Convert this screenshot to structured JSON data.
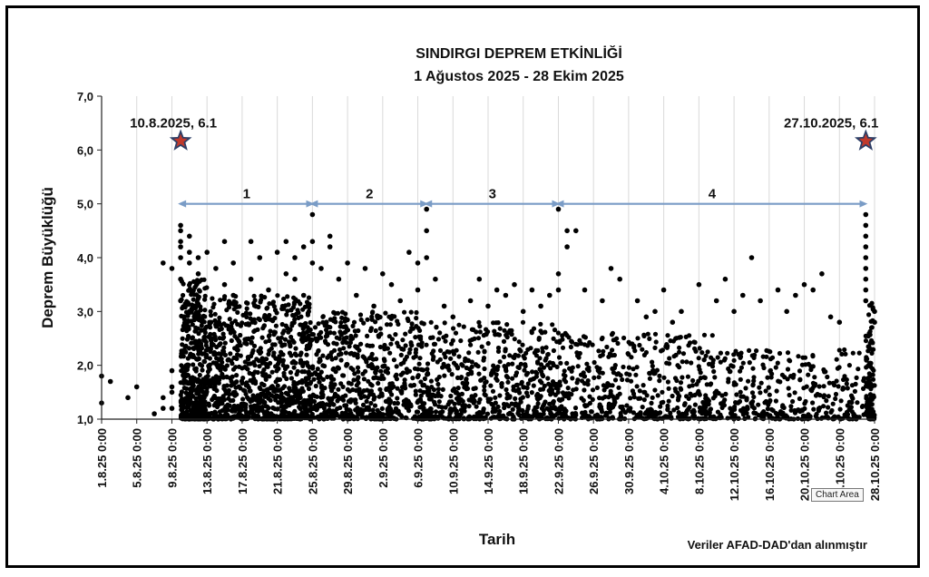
{
  "tooltip": "Chart Area",
  "chart_data": {
    "type": "scatter",
    "title": "SINDIRGI DEPREM ETKİNLİĞİ",
    "subtitle": "1 Ağustos 2025 - 28 Ekim 2025",
    "xlabel": "Tarih",
    "ylabel": "Deprem Büyüklüğü",
    "source_note": "Veriler AFAD-DAD'dan alınmıştır",
    "x_start": "2025-08-01",
    "x_end": "2025-10-28",
    "ylim": [
      1.0,
      7.0
    ],
    "yticks": [
      "1,0",
      "2,0",
      "3,0",
      "4,0",
      "5,0",
      "6,0",
      "7,0"
    ],
    "xticks": [
      "1.8.25 0:00",
      "5.8.25 0:00",
      "9.8.25 0:00",
      "13.8.25 0:00",
      "17.8.25 0:00",
      "21.8.25 0:00",
      "25.8.25 0:00",
      "29.8.25 0:00",
      "2.9.25 0:00",
      "6.9.25 0:00",
      "10.9.25 0:00",
      "14.9.25 0:00",
      "18.9.25 0:00",
      "22.9.25 0:00",
      "26.9.25 0:00",
      "30.9.25 0:00",
      "4.10.25 0:00",
      "8.10.25 0:00",
      "12.10.25 0:00",
      "16.10.25 0:00",
      "20.10.25 0:00",
      "24.10.25 0:00",
      "28.10.25 0:00"
    ],
    "grid": "vertical",
    "mainshocks": [
      {
        "label": "10.8.2025, 6.1",
        "date": "2025-08-10",
        "magnitude": 6.1
      },
      {
        "label": "27.10.2025, 6.1",
        "date": "2025-10-27",
        "magnitude": 6.1
      }
    ],
    "segments": [
      {
        "label": "1",
        "from": "2025-08-10",
        "to": "2025-08-25"
      },
      {
        "label": "2",
        "from": "2025-08-25",
        "to": "2025-09-07"
      },
      {
        "label": "3",
        "from": "2025-09-07",
        "to": "2025-09-22"
      },
      {
        "label": "4",
        "from": "2025-09-22",
        "to": "2025-10-27"
      }
    ],
    "colors": {
      "points": "#000000",
      "star": "#c0392b",
      "star_outline": "#2c3e66",
      "arrow": "#7a9cc6",
      "grid": "#d9d9d9"
    },
    "series": [
      {
        "values": [
          [
            "2025-08-01",
            1.8
          ],
          [
            "2025-08-01",
            1.3
          ],
          [
            "2025-08-02",
            1.7
          ],
          [
            "2025-08-04",
            1.4
          ],
          [
            "2025-08-05",
            1.6
          ],
          [
            "2025-08-07",
            1.1
          ],
          [
            "2025-08-08",
            1.2
          ],
          [
            "2025-08-08",
            1.4
          ],
          [
            "2025-08-08",
            3.9
          ],
          [
            "2025-08-09",
            1.9
          ],
          [
            "2025-08-09",
            1.6
          ],
          [
            "2025-08-09",
            1.2
          ],
          [
            "2025-08-09",
            3.8
          ],
          [
            "2025-08-09",
            1.5
          ],
          [
            "2025-08-10",
            4.6
          ],
          [
            "2025-08-10",
            4.5
          ],
          [
            "2025-08-10",
            4.3
          ],
          [
            "2025-08-10",
            4.2
          ],
          [
            "2025-08-10",
            4.0
          ],
          [
            "2025-08-10",
            3.6
          ],
          [
            "2025-08-10",
            3.2
          ],
          [
            "2025-08-11",
            4.4
          ],
          [
            "2025-08-11",
            4.1
          ],
          [
            "2025-08-11",
            3.9
          ],
          [
            "2025-08-11",
            3.0
          ],
          [
            "2025-08-12",
            4.0
          ],
          [
            "2025-08-12",
            3.7
          ],
          [
            "2025-08-13",
            4.1
          ],
          [
            "2025-08-14",
            3.8
          ],
          [
            "2025-08-15",
            4.3
          ],
          [
            "2025-08-15",
            3.5
          ],
          [
            "2025-08-16",
            3.9
          ],
          [
            "2025-08-16",
            3.3
          ],
          [
            "2025-08-18",
            4.3
          ],
          [
            "2025-08-18",
            3.6
          ],
          [
            "2025-08-19",
            4.0
          ],
          [
            "2025-08-20",
            3.4
          ],
          [
            "2025-08-21",
            4.1
          ],
          [
            "2025-08-22",
            4.3
          ],
          [
            "2025-08-22",
            3.7
          ],
          [
            "2025-08-23",
            4.0
          ],
          [
            "2025-08-23",
            3.6
          ],
          [
            "2025-08-24",
            4.2
          ],
          [
            "2025-08-24",
            3.3
          ],
          [
            "2025-08-25",
            4.8
          ],
          [
            "2025-08-25",
            4.3
          ],
          [
            "2025-08-25",
            3.9
          ],
          [
            "2025-08-26",
            3.8
          ],
          [
            "2025-08-27",
            4.4
          ],
          [
            "2025-08-27",
            4.2
          ],
          [
            "2025-08-28",
            3.6
          ],
          [
            "2025-08-29",
            3.9
          ],
          [
            "2025-08-30",
            3.3
          ],
          [
            "2025-08-31",
            3.8
          ],
          [
            "2025-09-01",
            3.1
          ],
          [
            "2025-09-02",
            3.7
          ],
          [
            "2025-09-03",
            3.5
          ],
          [
            "2025-09-04",
            3.2
          ],
          [
            "2025-09-05",
            4.1
          ],
          [
            "2025-09-06",
            3.9
          ],
          [
            "2025-09-06",
            3.4
          ],
          [
            "2025-09-07",
            4.9
          ],
          [
            "2025-09-07",
            4.5
          ],
          [
            "2025-09-07",
            4.0
          ],
          [
            "2025-09-08",
            3.6
          ],
          [
            "2025-09-09",
            3.1
          ],
          [
            "2025-09-10",
            2.9
          ],
          [
            "2025-09-12",
            3.2
          ],
          [
            "2025-09-13",
            3.6
          ],
          [
            "2025-09-14",
            3.1
          ],
          [
            "2025-09-15",
            3.4
          ],
          [
            "2025-09-16",
            3.3
          ],
          [
            "2025-09-17",
            3.5
          ],
          [
            "2025-09-18",
            3.0
          ],
          [
            "2025-09-19",
            3.4
          ],
          [
            "2025-09-20",
            3.1
          ],
          [
            "2025-09-21",
            3.3
          ],
          [
            "2025-09-22",
            4.9
          ],
          [
            "2025-09-22",
            3.7
          ],
          [
            "2025-09-22",
            3.4
          ],
          [
            "2025-09-23",
            4.5
          ],
          [
            "2025-09-23",
            4.2
          ],
          [
            "2025-09-24",
            4.5
          ],
          [
            "2025-09-25",
            3.4
          ],
          [
            "2025-09-27",
            3.2
          ],
          [
            "2025-09-28",
            3.8
          ],
          [
            "2025-09-29",
            3.6
          ],
          [
            "2025-10-01",
            3.2
          ],
          [
            "2025-10-02",
            2.9
          ],
          [
            "2025-10-03",
            3.0
          ],
          [
            "2025-10-04",
            3.4
          ],
          [
            "2025-10-05",
            2.8
          ],
          [
            "2025-10-06",
            3.0
          ],
          [
            "2025-10-08",
            3.5
          ],
          [
            "2025-10-10",
            3.2
          ],
          [
            "2025-10-11",
            3.6
          ],
          [
            "2025-10-12",
            3.0
          ],
          [
            "2025-10-13",
            3.3
          ],
          [
            "2025-10-14",
            4.0
          ],
          [
            "2025-10-15",
            3.2
          ],
          [
            "2025-10-17",
            3.4
          ],
          [
            "2025-10-18",
            3.0
          ],
          [
            "2025-10-19",
            3.3
          ],
          [
            "2025-10-20",
            3.5
          ],
          [
            "2025-10-21",
            3.4
          ],
          [
            "2025-10-22",
            3.7
          ],
          [
            "2025-10-23",
            2.9
          ],
          [
            "2025-10-24",
            2.8
          ],
          [
            "2025-10-27",
            4.8
          ],
          [
            "2025-10-27",
            4.6
          ],
          [
            "2025-10-27",
            4.4
          ],
          [
            "2025-10-27",
            4.2
          ],
          [
            "2025-10-27",
            4.0
          ],
          [
            "2025-10-27",
            3.8
          ],
          [
            "2025-10-27",
            3.6
          ],
          [
            "2025-10-27",
            3.4
          ],
          [
            "2025-10-27",
            3.2
          ],
          [
            "2025-10-28",
            3.0
          ],
          [
            "2025-10-28",
            2.8
          ]
        ]
      }
    ],
    "background_density": [
      {
        "from": "2025-08-10",
        "to": "2025-08-13",
        "density": 140,
        "max": 3.6
      },
      {
        "from": "2025-08-13",
        "to": "2025-08-25",
        "density": 75,
        "max": 3.3
      },
      {
        "from": "2025-08-25",
        "to": "2025-09-07",
        "density": 48,
        "max": 3.0
      },
      {
        "from": "2025-09-07",
        "to": "2025-09-22",
        "density": 38,
        "max": 2.8
      },
      {
        "from": "2025-09-22",
        "to": "2025-10-10",
        "density": 28,
        "max": 2.6
      },
      {
        "from": "2025-10-10",
        "to": "2025-10-27",
        "density": 20,
        "max": 2.3
      },
      {
        "from": "2025-10-27",
        "to": "2025-10-28",
        "density": 120,
        "max": 3.2
      }
    ]
  }
}
